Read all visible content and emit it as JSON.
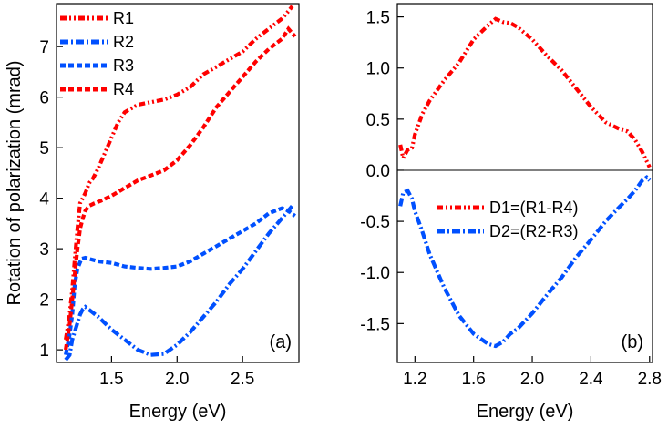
{
  "chart_data": [
    {
      "panel": "(a)",
      "type": "line",
      "xlabel": "Energy (eV)",
      "ylabel": "Rotation of polarization (mrad)",
      "xlim": [
        1.08,
        2.93
      ],
      "ylim": [
        0.75,
        7.85
      ],
      "xticks": [
        1.5,
        2.0,
        2.5
      ],
      "xtick_labels": [
        "1.5",
        "2.0",
        "2.5"
      ],
      "yticks": [
        1,
        2,
        3,
        4,
        5,
        6,
        7
      ],
      "ytick_labels": [
        "1",
        "2",
        "3",
        "4",
        "5",
        "6",
        "7"
      ],
      "grid": false,
      "legend_position": "top-left",
      "series": [
        {
          "name": "R1",
          "color": "#ff0000",
          "dash": "dash-dot-dot",
          "x": [
            1.15,
            1.18,
            1.2,
            1.22,
            1.24,
            1.26,
            1.28,
            1.3,
            1.33,
            1.36,
            1.4,
            1.45,
            1.5,
            1.55,
            1.6,
            1.7,
            1.8,
            1.9,
            2.0,
            2.1,
            2.2,
            2.3,
            2.4,
            2.5,
            2.6,
            2.7,
            2.8,
            2.85,
            2.88
          ],
          "y": [
            1.2,
            1.7,
            2.2,
            2.8,
            3.4,
            3.9,
            4.0,
            4.1,
            4.3,
            4.4,
            4.6,
            4.9,
            5.2,
            5.5,
            5.7,
            5.85,
            5.9,
            5.95,
            6.05,
            6.2,
            6.45,
            6.6,
            6.75,
            6.9,
            7.15,
            7.35,
            7.55,
            7.7,
            7.8
          ]
        },
        {
          "name": "R2",
          "color": "#0050ff",
          "dash": "dash-dot",
          "x": [
            1.15,
            1.18,
            1.2,
            1.23,
            1.26,
            1.28,
            1.3,
            1.35,
            1.4,
            1.5,
            1.6,
            1.7,
            1.8,
            1.9,
            2.0,
            2.1,
            2.2,
            2.3,
            2.4,
            2.5,
            2.6,
            2.7,
            2.8,
            2.88
          ],
          "y": [
            0.8,
            0.9,
            1.2,
            1.45,
            1.7,
            1.8,
            1.85,
            1.75,
            1.65,
            1.4,
            1.2,
            1.0,
            0.9,
            0.92,
            1.1,
            1.35,
            1.65,
            1.95,
            2.3,
            2.6,
            2.95,
            3.3,
            3.6,
            3.85
          ]
        },
        {
          "name": "R3",
          "color": "#0050ff",
          "dash": "dash",
          "x": [
            1.15,
            1.18,
            1.2,
            1.22,
            1.24,
            1.27,
            1.3,
            1.4,
            1.5,
            1.6,
            1.7,
            1.8,
            1.9,
            2.0,
            2.1,
            2.2,
            2.3,
            2.4,
            2.5,
            2.6,
            2.7,
            2.8,
            2.85,
            2.9
          ],
          "y": [
            0.9,
            1.3,
            1.7,
            2.3,
            2.6,
            2.8,
            2.82,
            2.75,
            2.72,
            2.65,
            2.62,
            2.6,
            2.62,
            2.65,
            2.75,
            2.9,
            3.05,
            3.2,
            3.35,
            3.5,
            3.7,
            3.8,
            3.75,
            3.65
          ]
        },
        {
          "name": "R4",
          "color": "#ff0000",
          "dash": "dash",
          "x": [
            1.15,
            1.18,
            1.2,
            1.22,
            1.24,
            1.26,
            1.28,
            1.3,
            1.33,
            1.37,
            1.42,
            1.5,
            1.6,
            1.7,
            1.8,
            1.9,
            2.0,
            2.1,
            2.2,
            2.3,
            2.4,
            2.5,
            2.6,
            2.7,
            2.8,
            2.85,
            2.9
          ],
          "y": [
            1.0,
            1.5,
            2.0,
            2.5,
            3.0,
            3.4,
            3.6,
            3.75,
            3.85,
            3.9,
            3.95,
            4.05,
            4.2,
            4.35,
            4.45,
            4.55,
            4.75,
            5.05,
            5.4,
            5.8,
            6.1,
            6.4,
            6.7,
            6.95,
            7.15,
            7.35,
            7.2
          ]
        }
      ]
    },
    {
      "panel": "(b)",
      "type": "line",
      "xlabel": "Energy (eV)",
      "ylabel": "",
      "xlim": [
        1.08,
        2.82
      ],
      "ylim": [
        -1.88,
        1.63
      ],
      "xticks": [
        1.2,
        1.6,
        2.0,
        2.4,
        2.8
      ],
      "xtick_labels": [
        "1.2",
        "1.6",
        "2.0",
        "2.4",
        "2.8"
      ],
      "yticks": [
        1.5,
        1.0,
        0.5,
        0.0,
        -0.5,
        -1.0,
        -1.5
      ],
      "ytick_labels": [
        "1.5",
        "1.0",
        "0.5",
        "0.0",
        "-0.5",
        "-1.0",
        "-1.5"
      ],
      "zero_line": true,
      "grid": false,
      "legend_position": "center",
      "series": [
        {
          "name": "D1=(R1-R4)",
          "color": "#ff0000",
          "dash": "dash-dot-dot",
          "x": [
            1.1,
            1.12,
            1.15,
            1.18,
            1.2,
            1.25,
            1.3,
            1.35,
            1.4,
            1.5,
            1.6,
            1.7,
            1.75,
            1.8,
            1.85,
            1.9,
            2.0,
            2.1,
            2.2,
            2.3,
            2.4,
            2.5,
            2.6,
            2.65,
            2.7,
            2.75,
            2.8
          ],
          "y": [
            0.25,
            0.12,
            0.2,
            0.22,
            0.35,
            0.55,
            0.68,
            0.78,
            0.88,
            1.05,
            1.28,
            1.42,
            1.48,
            1.45,
            1.44,
            1.4,
            1.28,
            1.12,
            0.98,
            0.8,
            0.62,
            0.47,
            0.4,
            0.38,
            0.3,
            0.18,
            0.03
          ]
        },
        {
          "name": "D2=(R2-R3)",
          "color": "#0050ff",
          "dash": "dash-dot",
          "x": [
            1.1,
            1.12,
            1.15,
            1.18,
            1.2,
            1.25,
            1.3,
            1.4,
            1.5,
            1.6,
            1.7,
            1.75,
            1.8,
            1.85,
            1.9,
            2.0,
            2.1,
            2.2,
            2.3,
            2.4,
            2.5,
            2.6,
            2.65,
            2.7,
            2.75,
            2.78,
            2.8
          ],
          "y": [
            -0.35,
            -0.22,
            -0.2,
            -0.28,
            -0.4,
            -0.6,
            -0.82,
            -1.15,
            -1.42,
            -1.6,
            -1.7,
            -1.72,
            -1.68,
            -1.6,
            -1.55,
            -1.4,
            -1.22,
            -1.05,
            -0.85,
            -0.68,
            -0.5,
            -0.35,
            -0.28,
            -0.2,
            -0.1,
            -0.07,
            -0.1
          ]
        }
      ]
    }
  ]
}
